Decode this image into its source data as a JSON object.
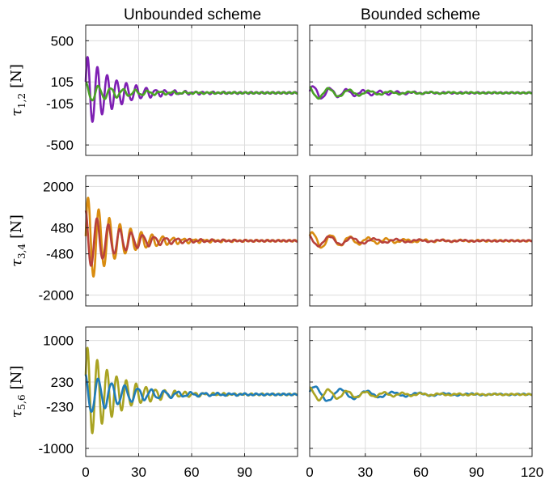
{
  "column_titles": [
    "Unbounded scheme",
    "Bounded scheme"
  ],
  "row_labels": [
    {
      "sym": "τ",
      "sub": "1,2",
      "unit": "[N]"
    },
    {
      "sym": "τ",
      "sub": "3,4",
      "unit": "[N]"
    },
    {
      "sym": "τ",
      "sub": "5,6",
      "unit": "[N]"
    }
  ],
  "x_ticks": {
    "left": [
      "0",
      "30",
      "60",
      "90"
    ],
    "right": [
      "0",
      "30",
      "60",
      "90",
      "120"
    ]
  },
  "colors": {
    "purple": "#7e1fb3",
    "green": "#4aa126",
    "orange": "#d98c10",
    "red": "#b8413b",
    "blue": "#1f7cb8",
    "olive": "#a9a322",
    "grid": "#dcdcdc"
  },
  "chart_data": [
    {
      "type": "line",
      "row": 0,
      "col": 0,
      "title": "Unbounded scheme",
      "ylabel": "τ1,2 [N]",
      "xlim": [
        0,
        120
      ],
      "ylim": [
        -600,
        650
      ],
      "yticks": [
        -500,
        -105,
        105,
        500
      ],
      "xticks": [
        0,
        30,
        60,
        90
      ],
      "series": [
        {
          "color": "purple",
          "amp": 360,
          "decay": 0.06,
          "period": 5.5,
          "phase": 0.3,
          "ripple": 8
        },
        {
          "color": "green",
          "amp": 90,
          "decay": 0.045,
          "period": 7.0,
          "phase": 1.4,
          "ripple": 6
        }
      ]
    },
    {
      "type": "line",
      "row": 0,
      "col": 1,
      "title": "Bounded scheme",
      "ylabel": "τ1,2 [N]",
      "xlim": [
        0,
        120
      ],
      "ylim": [
        -600,
        650
      ],
      "yticks": [
        -500,
        -105,
        105,
        500
      ],
      "xticks": [
        0,
        30,
        60,
        90,
        120
      ],
      "series": [
        {
          "color": "purple",
          "amp": 70,
          "decay": 0.04,
          "period": 9.0,
          "phase": 0.2,
          "ripple": 6
        },
        {
          "color": "green",
          "amp": 60,
          "decay": 0.035,
          "period": 11.0,
          "phase": 2.0,
          "ripple": 5
        }
      ]
    },
    {
      "type": "line",
      "row": 1,
      "col": 0,
      "title": "Unbounded scheme",
      "ylabel": "τ3,4 [N]",
      "xlim": [
        0,
        120
      ],
      "ylim": [
        -2400,
        2400
      ],
      "yticks": [
        -2000,
        -480,
        480,
        2000
      ],
      "xticks": [
        0,
        30,
        60,
        90
      ],
      "series": [
        {
          "color": "orange",
          "amp": 1700,
          "decay": 0.055,
          "period": 6.0,
          "phase": 0.1,
          "ripple": 30
        },
        {
          "color": "red",
          "amp": 1100,
          "decay": 0.05,
          "period": 6.5,
          "phase": 1.7,
          "ripple": 25
        }
      ]
    },
    {
      "type": "line",
      "row": 1,
      "col": 1,
      "title": "Bounded scheme",
      "ylabel": "τ3,4 [N]",
      "xlim": [
        0,
        120
      ],
      "ylim": [
        -2400,
        2400
      ],
      "yticks": [
        -2000,
        -480,
        480,
        2000
      ],
      "xticks": [
        0,
        30,
        60,
        90,
        120
      ],
      "series": [
        {
          "color": "orange",
          "amp": 320,
          "decay": 0.035,
          "period": 10.0,
          "phase": 0.6,
          "ripple": 25
        },
        {
          "color": "red",
          "amp": 220,
          "decay": 0.03,
          "period": 12.0,
          "phase": 2.2,
          "ripple": 20
        }
      ]
    },
    {
      "type": "line",
      "row": 2,
      "col": 0,
      "title": "Unbounded scheme",
      "ylabel": "τ5,6 [N]",
      "xlim": [
        0,
        120
      ],
      "ylim": [
        -1150,
        1250
      ],
      "yticks": [
        -1000,
        -230,
        230,
        1000
      ],
      "xticks": [
        0,
        30,
        60,
        90
      ],
      "series": [
        {
          "color": "olive",
          "amp": 900,
          "decay": 0.055,
          "period": 5.5,
          "phase": 0.4,
          "ripple": 15
        },
        {
          "color": "blue",
          "amp": 380,
          "decay": 0.04,
          "period": 7.5,
          "phase": 1.9,
          "ripple": 12
        }
      ]
    },
    {
      "type": "line",
      "row": 2,
      "col": 1,
      "title": "Bounded scheme",
      "ylabel": "τ5,6 [N]",
      "xlim": [
        0,
        120
      ],
      "ylim": [
        -1150,
        1250
      ],
      "yticks": [
        -1000,
        -230,
        230,
        1000
      ],
      "xticks": [
        0,
        30,
        60,
        90,
        120
      ],
      "series": [
        {
          "color": "blue",
          "amp": 160,
          "decay": 0.03,
          "period": 14.0,
          "phase": 0.3,
          "ripple": 10
        },
        {
          "color": "olive",
          "amp": 120,
          "decay": 0.03,
          "period": 10.0,
          "phase": 1.5,
          "ripple": 10
        }
      ]
    }
  ]
}
